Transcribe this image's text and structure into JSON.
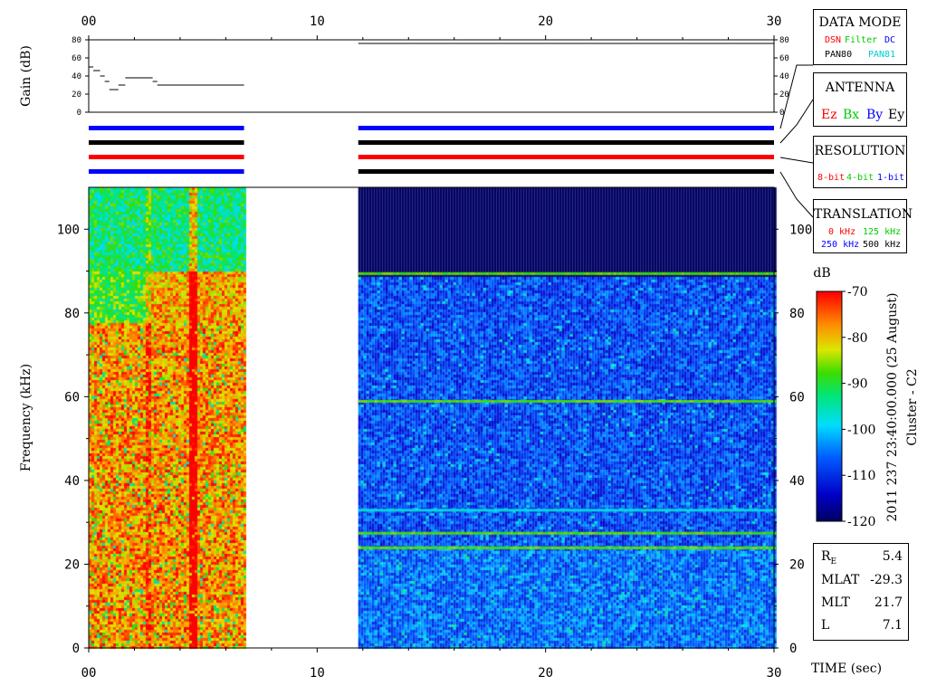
{
  "chart_data": {
    "type": "heatmap",
    "time_axis": {
      "label": "TIME (sec)",
      "range": [
        0,
        30
      ],
      "ticks": [
        "00",
        "10",
        "20",
        "30"
      ]
    },
    "gain_panel": {
      "ylabel": "Gain (dB)",
      "ylim": [
        0,
        80
      ],
      "ticks": [
        "0",
        "20",
        "40",
        "60",
        "80"
      ],
      "segments": [
        {
          "t": [
            0.0,
            0.2
          ],
          "gain": 50
        },
        {
          "t": [
            0.2,
            0.5
          ],
          "gain": 46
        },
        {
          "t": [
            0.5,
            0.7
          ],
          "gain": 40
        },
        {
          "t": [
            0.7,
            0.9
          ],
          "gain": 34
        },
        {
          "t": [
            0.9,
            1.3
          ],
          "gain": 25
        },
        {
          "t": [
            1.3,
            1.6
          ],
          "gain": 30
        },
        {
          "t": [
            1.6,
            2.8
          ],
          "gain": 38
        },
        {
          "t": [
            2.8,
            3.0
          ],
          "gain": 34
        },
        {
          "t": [
            3.0,
            6.8
          ],
          "gain": 30
        },
        {
          "t": [
            11.8,
            30.0
          ],
          "gain": 76
        }
      ]
    },
    "mode_bars": [
      {
        "segments": [
          {
            "t": [
              0,
              6.8
            ],
            "color": "#0000ff"
          },
          {
            "t": [
              11.8,
              30
            ],
            "color": "#0000ff"
          }
        ]
      },
      {
        "segments": [
          {
            "t": [
              0,
              6.8
            ],
            "color": "#000000"
          },
          {
            "t": [
              11.8,
              30
            ],
            "color": "#000000"
          }
        ]
      },
      {
        "segments": [
          {
            "t": [
              0,
              6.8
            ],
            "color": "#ff0000"
          },
          {
            "t": [
              11.8,
              30
            ],
            "color": "#ff0000"
          }
        ]
      },
      {
        "segments": [
          {
            "t": [
              0,
              6.8
            ],
            "color": "#0000ff"
          },
          {
            "t": [
              11.8,
              30
            ],
            "color": "#000000"
          }
        ]
      }
    ],
    "spectrogram": {
      "ylabel": "Frequency (kHz)",
      "ylim": [
        0,
        110
      ],
      "ticks": [
        "0",
        "20",
        "40",
        "60",
        "80",
        "100"
      ],
      "intervals": [
        {
          "t": [
            0,
            6.8
          ],
          "character": "intense broadband"
        },
        {
          "t": [
            11.8,
            30
          ],
          "character": "background noise",
          "cutoff_khz": 89
        }
      ],
      "lines_khz": [
        89.5,
        59,
        27.5,
        24,
        33
      ]
    },
    "colorbar": {
      "unit": "dB",
      "range": [
        -120,
        -70
      ],
      "ticks": [
        "-70",
        "-80",
        "-90",
        "-100",
        "-110",
        "-120"
      ]
    },
    "side_label": "2011 237 23:40:00.000 (25 August)",
    "spacecraft": "Cluster - C2"
  },
  "legend": {
    "data_mode": {
      "title": "DATA MODE",
      "items": [
        {
          "label": "DSN",
          "color": "#ff0000"
        },
        {
          "label": "Filter",
          "color": "#00cc00"
        },
        {
          "label": "DC",
          "color": "#0000ff"
        },
        {
          "label": "PAN80",
          "color": "#000000"
        },
        {
          "label": "PAN81",
          "color": "#00cccc"
        }
      ]
    },
    "antenna": {
      "title": "ANTENNA",
      "items": [
        {
          "label": "Ez",
          "color": "#ff0000"
        },
        {
          "label": "Bx",
          "color": "#00cc00"
        },
        {
          "label": "By",
          "color": "#0000ff"
        },
        {
          "label": "Ey",
          "color": "#000000"
        }
      ]
    },
    "resolution": {
      "title": "RESOLUTION",
      "items": [
        {
          "label": "8-bit",
          "color": "#ff0000"
        },
        {
          "label": "4-bit",
          "color": "#00cc00"
        },
        {
          "label": "1-bit",
          "color": "#0000ff"
        }
      ]
    },
    "translation": {
      "title": "TRANSLATION",
      "items": [
        {
          "label": "0 kHz",
          "color": "#ff0000"
        },
        {
          "label": "125 kHz",
          "color": "#00cc00"
        },
        {
          "label": "250 kHz",
          "color": "#0000ff"
        },
        {
          "label": "500 kHz",
          "color": "#000000"
        }
      ]
    }
  },
  "info": {
    "re_label": "R",
    "re_sub": "E",
    "re_value": "5.4",
    "mlat_label": "MLAT",
    "mlat_value": "-29.3",
    "mlt_label": "MLT",
    "mlt_value": "21.7",
    "l_label": "L",
    "l_value": "7.1"
  }
}
